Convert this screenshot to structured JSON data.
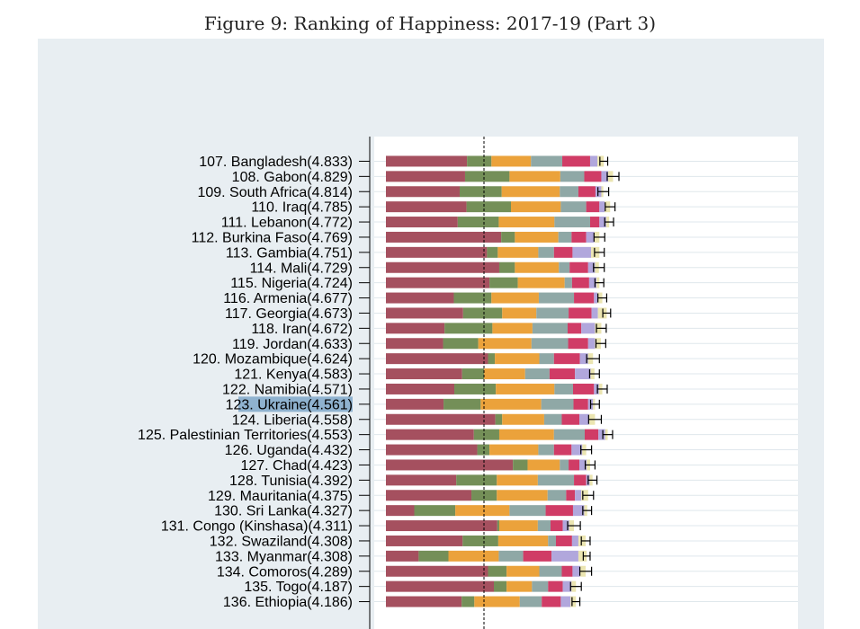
{
  "figure": {
    "caption": "Figure 9: Ranking of Happiness: 2017-19 (Part 3)"
  },
  "colors": {
    "panel_background": "#e8eef2",
    "plot_background": "#ffffff",
    "dystopia_residual": "#a5505f",
    "gdp_per_capita": "#748f58",
    "social_support": "#eba23b",
    "healthy_life_expectancy": "#8fa8a6",
    "freedom": "#d03c66",
    "generosity": "#b1a7dc",
    "perceptions_of_corruption": "#ebe5b1",
    "highlight": "#8fb2cf",
    "gridline": "#dfe7ec",
    "axis": "#000000"
  },
  "chart_data": {
    "type": "bar",
    "stacked": true,
    "orientation": "horizontal",
    "highlighted_label": "123. Ukraine(4.561)",
    "categories": [
      "107. Bangladesh(4.833)",
      "108. Gabon(4.829)",
      "109. South Africa(4.814)",
      "110. Iraq(4.785)",
      "111. Lebanon(4.772)",
      "112. Burkina Faso(4.769)",
      "113. Gambia(4.751)",
      "114. Mali(4.729)",
      "115. Nigeria(4.724)",
      "116. Armenia(4.677)",
      "117. Georgia(4.673)",
      "118. Iran(4.672)",
      "119. Jordan(4.633)",
      "120. Mozambique(4.624)",
      "121. Kenya(4.583)",
      "122. Namibia(4.571)",
      "123. Ukraine(4.561)",
      "124. Liberia(4.558)",
      "125. Palestinian Territories(4.553)",
      "126. Uganda(4.432)",
      "127. Chad(4.423)",
      "128. Tunisia(4.392)",
      "129. Mauritania(4.375)",
      "130. Sri Lanka(4.327)",
      "131. Congo (Kinshasa)(4.311)",
      "132. Swaziland(4.308)",
      "133. Myanmar(4.308)",
      "134. Comoros(4.289)",
      "135. Togo(4.187)",
      "136. Ethiopia(4.186)"
    ],
    "scores": [
      4.833,
      4.829,
      4.814,
      4.785,
      4.772,
      4.769,
      4.751,
      4.729,
      4.724,
      4.677,
      4.673,
      4.672,
      4.633,
      4.624,
      4.583,
      4.571,
      4.561,
      4.558,
      4.553,
      4.432,
      4.423,
      4.392,
      4.375,
      4.327,
      4.311,
      4.308,
      4.308,
      4.289,
      4.187,
      4.186
    ],
    "series": [
      {
        "colorKey": "dystopia_residual",
        "values": [
          1.66,
          1.62,
          1.51,
          1.65,
          1.47,
          2.36,
          2.07,
          2.32,
          2.12,
          1.39,
          1.58,
          1.2,
          1.17,
          2.09,
          1.56,
          1.4,
          1.18,
          2.24,
          1.8,
          1.87,
          2.6,
          1.44,
          1.75,
          0.58,
          2.28,
          1.57,
          0.67,
          2.09,
          2.21,
          1.55
        ]
      },
      {
        "colorKey": "gdp_per_capita",
        "values": [
          0.5,
          0.91,
          0.86,
          0.91,
          0.84,
          0.28,
          0.22,
          0.32,
          0.58,
          0.77,
          0.8,
          0.98,
          0.72,
          0.14,
          0.45,
          0.85,
          0.76,
          0.14,
          0.52,
          0.25,
          0.3,
          0.83,
          0.52,
          0.84,
          0.04,
          0.73,
          0.61,
          0.38,
          0.26,
          0.26
        ]
      },
      {
        "colorKey": "social_support",
        "values": [
          0.81,
          1.04,
          1.19,
          1.02,
          1.14,
          0.89,
          0.83,
          0.9,
          0.96,
          0.97,
          0.7,
          0.82,
          1.09,
          0.91,
          0.84,
          1.2,
          1.24,
          0.86,
          1.12,
          1.0,
          0.66,
          0.84,
          1.04,
          1.11,
          0.79,
          1.02,
          1.03,
          0.67,
          0.52,
          0.93
        ]
      },
      {
        "colorKey": "healthy_life_expectancy",
        "values": [
          0.64,
          0.49,
          0.38,
          0.52,
          0.73,
          0.27,
          0.32,
          0.22,
          0.15,
          0.72,
          0.66,
          0.72,
          0.75,
          0.3,
          0.5,
          0.38,
          0.66,
          0.36,
          0.63,
          0.32,
          0.18,
          0.74,
          0.38,
          0.74,
          0.26,
          0.16,
          0.5,
          0.46,
          0.33,
          0.45
        ]
      },
      {
        "colorKey": "freedom",
        "values": [
          0.57,
          0.35,
          0.35,
          0.27,
          0.19,
          0.3,
          0.38,
          0.38,
          0.35,
          0.41,
          0.47,
          0.28,
          0.41,
          0.53,
          0.52,
          0.43,
          0.3,
          0.36,
          0.28,
          0.36,
          0.22,
          0.25,
          0.18,
          0.56,
          0.25,
          0.33,
          0.58,
          0.22,
          0.3,
          0.39
        ]
      },
      {
        "colorKey": "generosity",
        "values": [
          0.15,
          0.14,
          0.12,
          0.11,
          0.14,
          0.17,
          0.38,
          0.14,
          0.15,
          0.07,
          0.13,
          0.28,
          0.14,
          0.17,
          0.32,
          0.1,
          0.1,
          0.2,
          0.14,
          0.22,
          0.15,
          0.07,
          0.13,
          0.23,
          0.13,
          0.13,
          0.55,
          0.16,
          0.18,
          0.2
        ]
      },
      {
        "colorKey": "perceptions_of_corruption",
        "values": [
          0.13,
          0.1,
          0.04,
          0.11,
          0.06,
          0.1,
          0.17,
          0.08,
          0.06,
          0.1,
          0.18,
          0.13,
          0.12,
          0.1,
          0.08,
          0.07,
          0.04,
          0.12,
          0.05,
          0.08,
          0.07,
          0.06,
          0.14,
          0.06,
          0.1,
          0.15,
          0.17,
          0.11,
          0.09,
          0.11
        ]
      }
    ],
    "ci_halfwidth": [
      0.08,
      0.12,
      0.11,
      0.1,
      0.09,
      0.11,
      0.1,
      0.11,
      0.09,
      0.09,
      0.08,
      0.1,
      0.1,
      0.13,
      0.1,
      0.1,
      0.09,
      0.13,
      0.1,
      0.11,
      0.1,
      0.09,
      0.11,
      0.09,
      0.13,
      0.09,
      0.07,
      0.12,
      0.11,
      0.08
    ],
    "x_range": [
      0,
      8
    ]
  }
}
